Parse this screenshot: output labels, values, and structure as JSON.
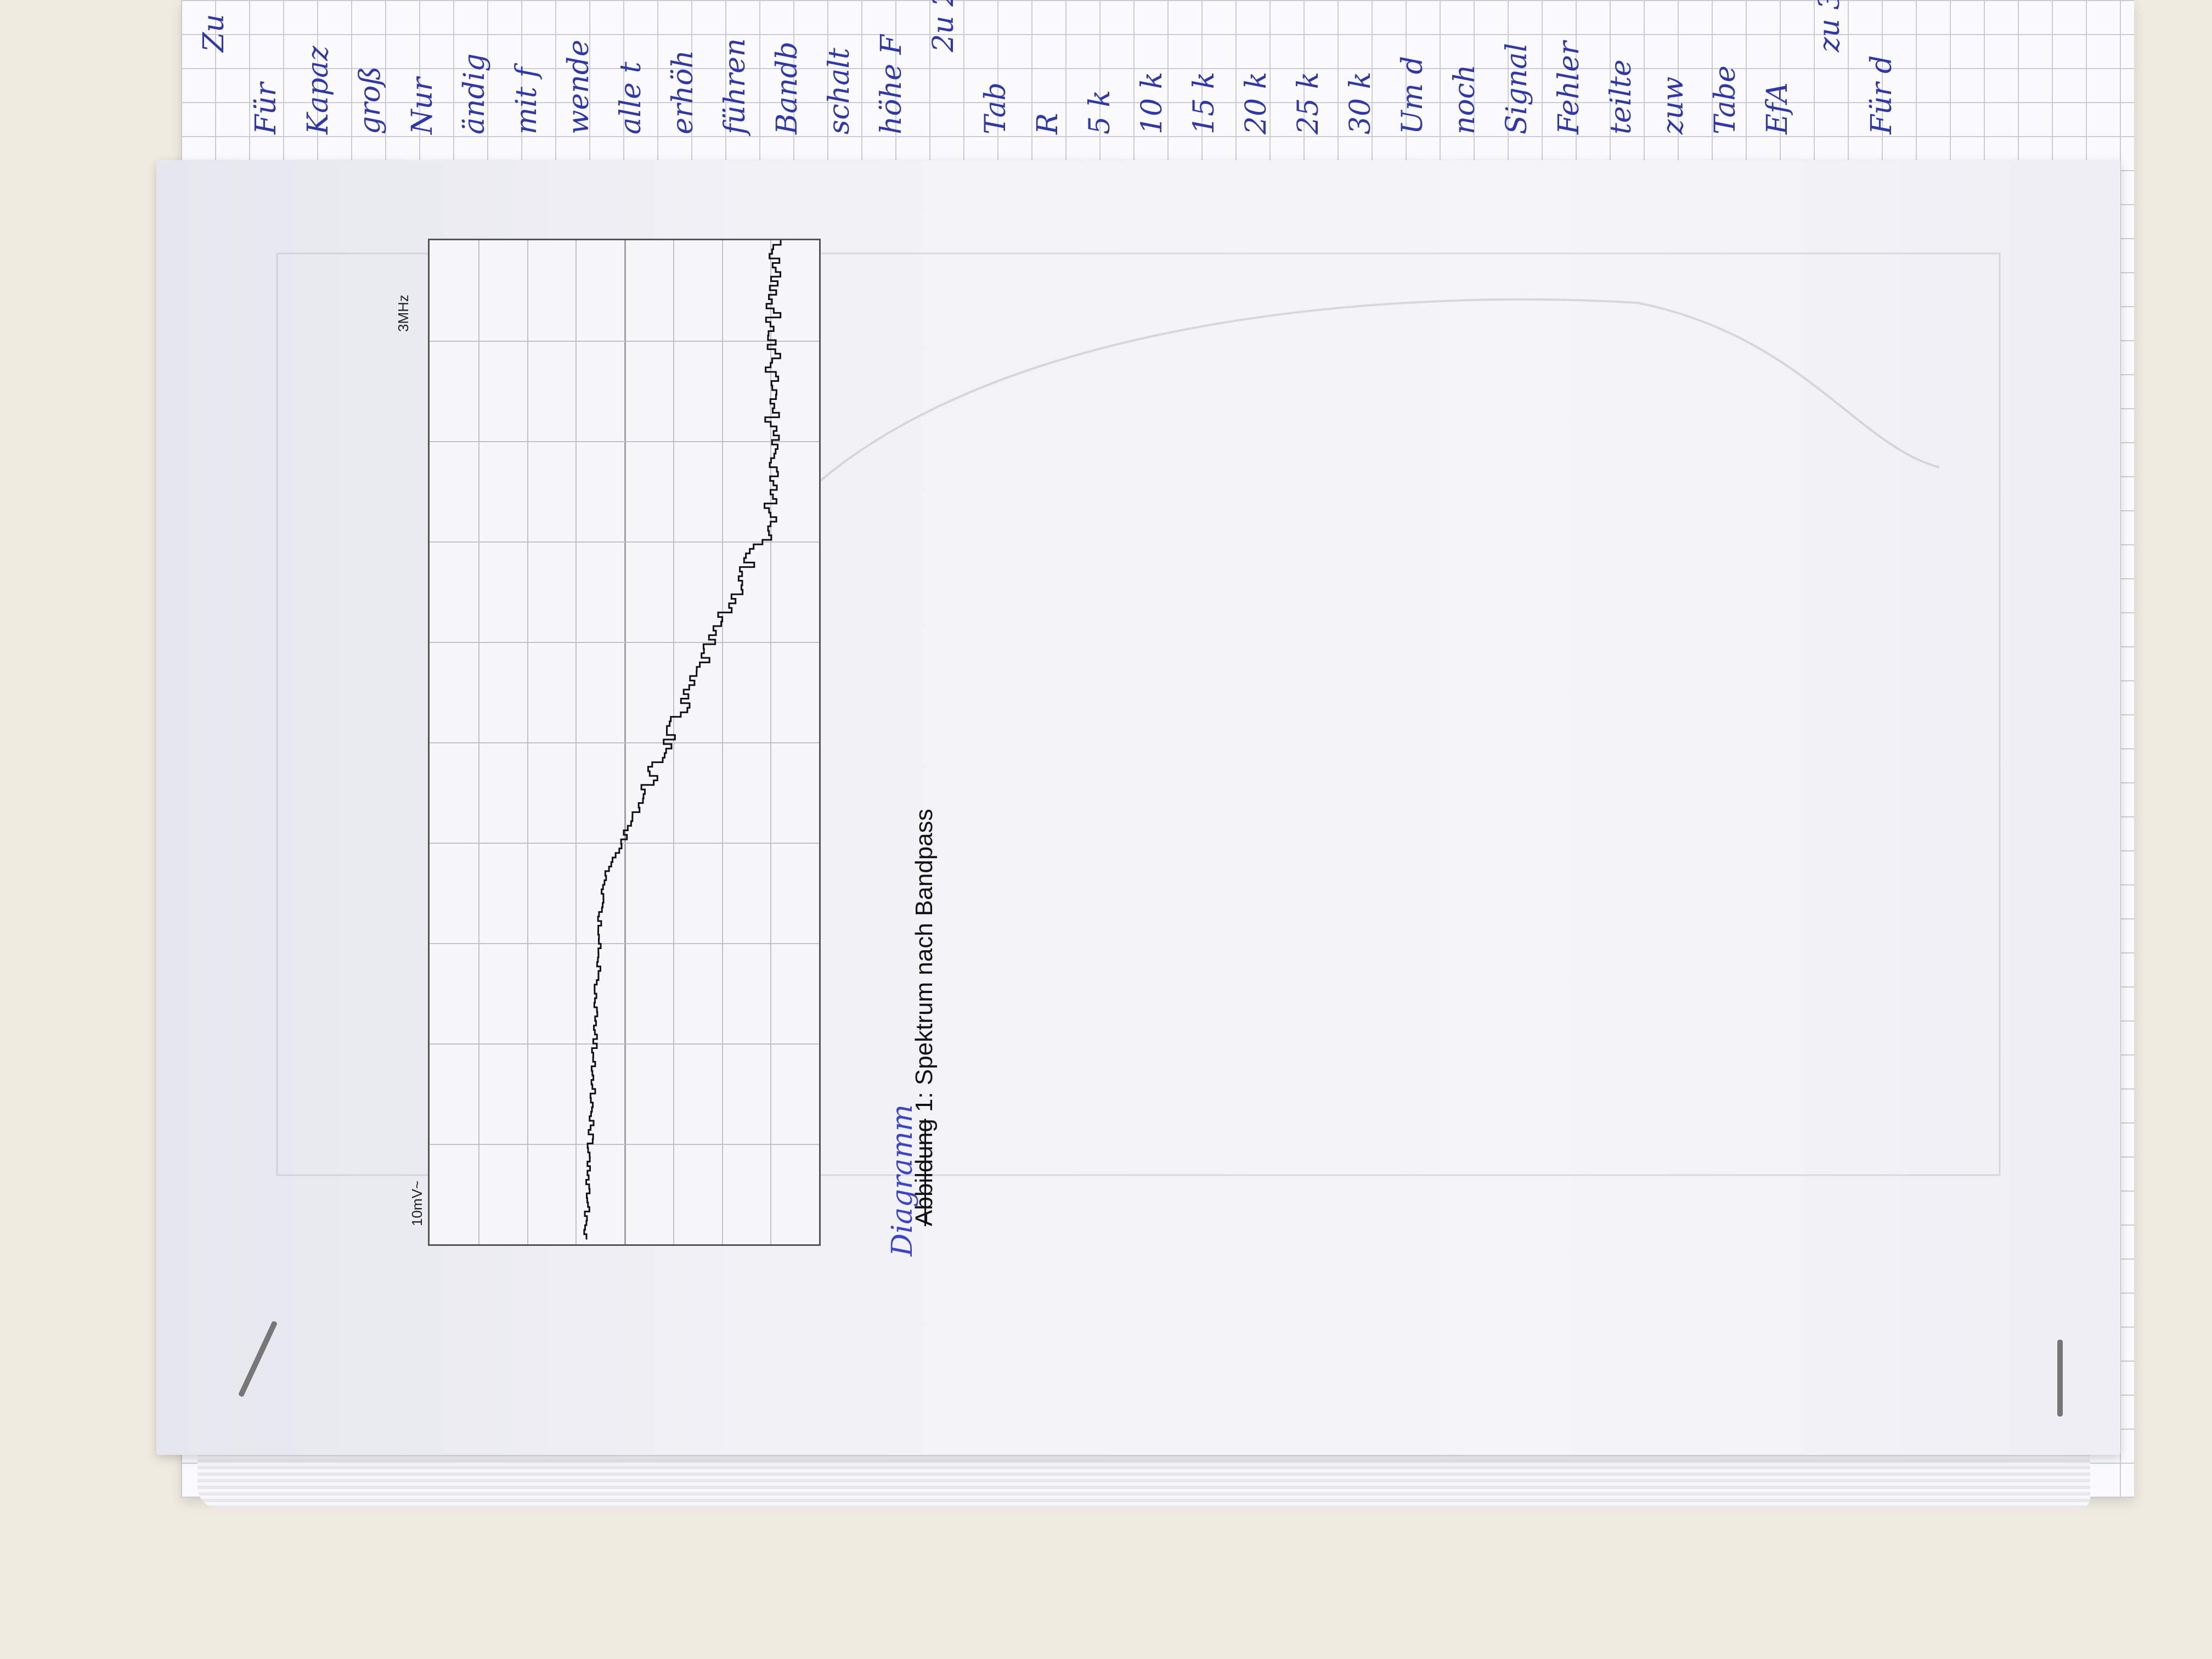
{
  "scope_screenshot": {
    "amplitude_label": "10mV~",
    "frequency_label": "3MHz"
  },
  "caption": {
    "struck_word": "Abbildung",
    "text": " 1: Spektrum nach Bandpass",
    "handwritten_correction": "Diagramm"
  },
  "notebook_handwriting": {
    "lines": [
      "Zu",
      "Für",
      "Kapaz",
      "groß",
      "Nur",
      "ändig",
      "mit f",
      "wende",
      "alle t",
      "erhöh",
      "führen",
      "Bandb",
      "schalt",
      "höhe F",
      "2u 2",
      "Tab",
      "R",
      "5 k",
      "10 k",
      "15 k",
      "20 k",
      "25 k",
      "30 k",
      "Um d",
      "noch",
      "Signal",
      "Fehler",
      "teilte",
      "zuw",
      "Tabe",
      "EfA",
      "zu 3",
      "Für d"
    ]
  },
  "colors": {
    "ink_handwriting": "#3038a8",
    "trace": "#111111",
    "grid": "#bfc1ca",
    "paper": "#f3f3f7",
    "desk": "#f0ebe0"
  }
}
